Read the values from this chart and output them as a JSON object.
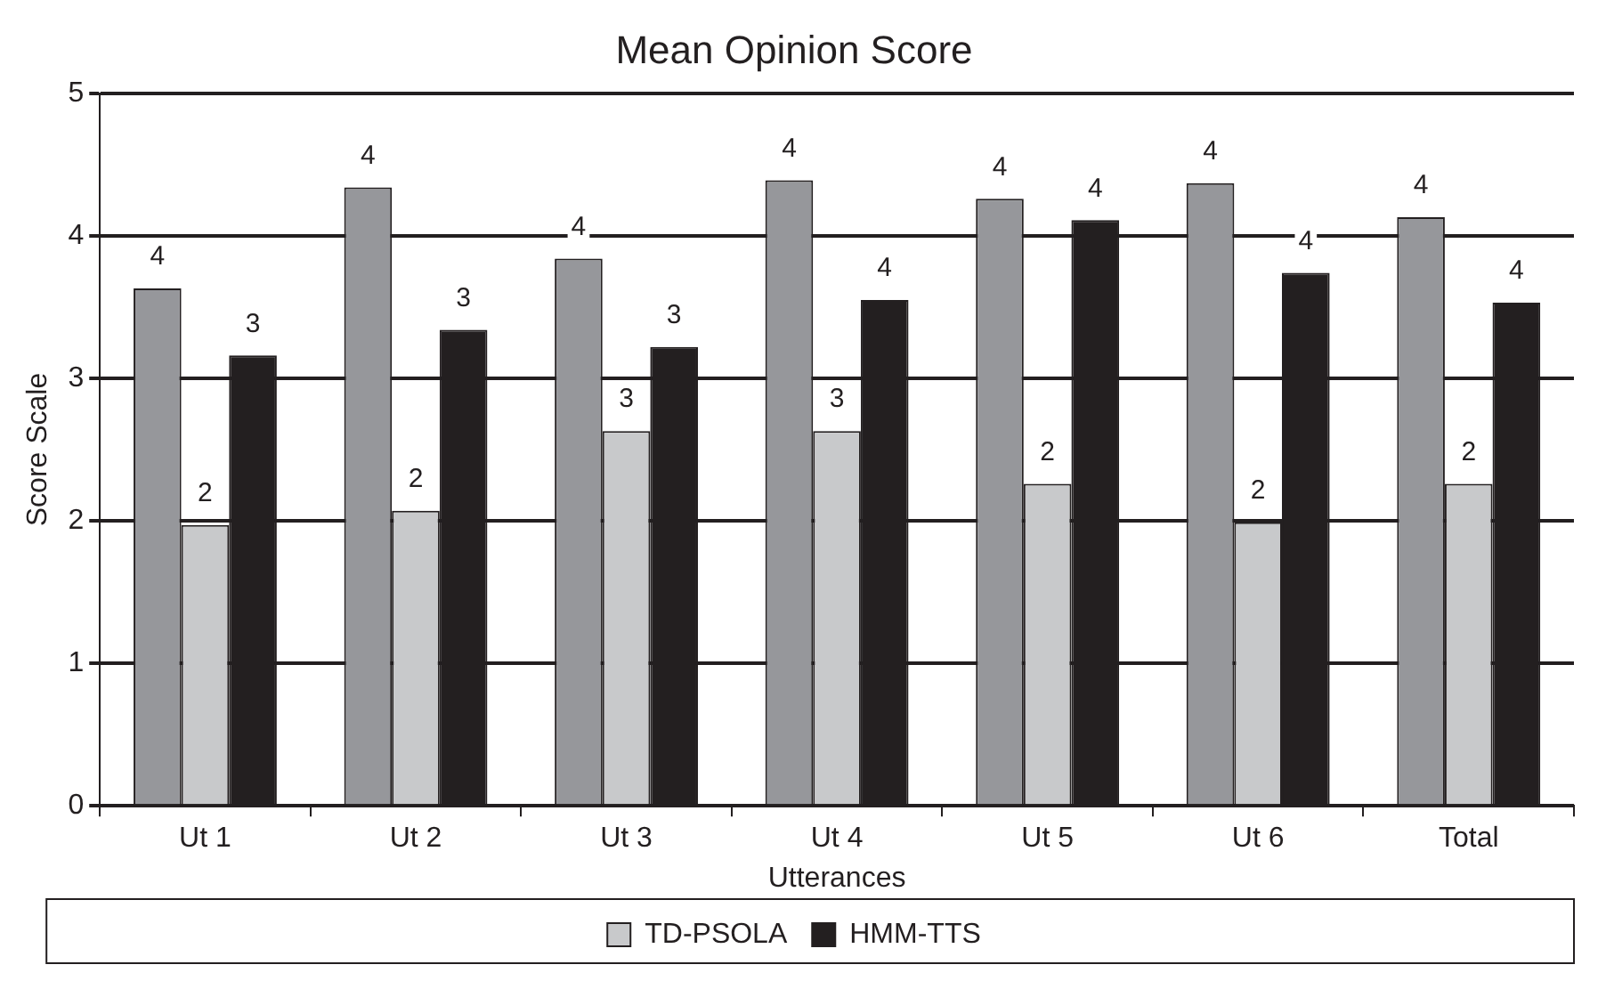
{
  "chart_data": {
    "type": "bar",
    "title": "Mean Opinion Score",
    "xlabel": "Utterances",
    "ylabel": "Score Scale",
    "categories": [
      "Ut 1",
      "Ut 2",
      "Ut 3",
      "Ut 4",
      "Ut 5",
      "Ut 6",
      "Total"
    ],
    "series": [
      {
        "color": "#96979b",
        "values": [
          3.63,
          4.34,
          3.84,
          4.39,
          4.26,
          4.37,
          4.13
        ],
        "value_labels": [
          "4",
          "4",
          "4",
          "4",
          "4",
          "4",
          "4"
        ]
      },
      {
        "name": "TD-PSOLA",
        "color": "#c8c9cb",
        "values": [
          1.97,
          2.07,
          2.63,
          2.63,
          2.26,
          1.99,
          2.26
        ],
        "value_labels": [
          "2",
          "2",
          "3",
          "3",
          "2",
          "2",
          "2"
        ]
      },
      {
        "name": "HMM-TTS",
        "color": "#231f20",
        "values": [
          3.16,
          3.34,
          3.22,
          3.55,
          4.11,
          3.74,
          3.53
        ],
        "value_labels": [
          "3",
          "3",
          "3",
          "4",
          "4",
          "4",
          "4"
        ]
      }
    ],
    "ylim": [
      0,
      5
    ],
    "yticks": [
      0,
      1,
      2,
      3,
      4,
      5
    ],
    "grid": "y",
    "legend": "bottom"
  }
}
